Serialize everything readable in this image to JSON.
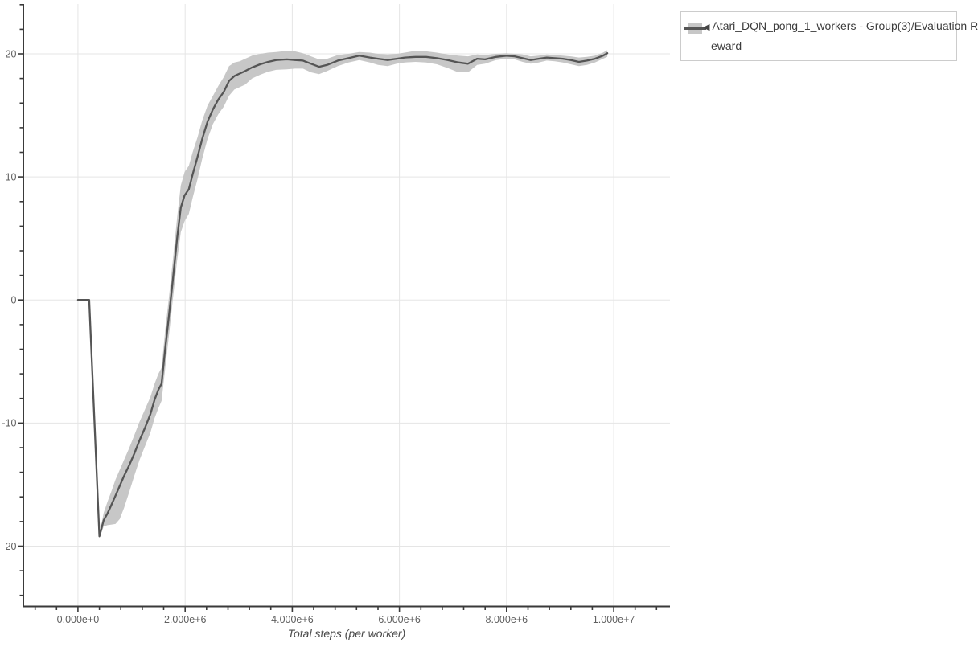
{
  "page": {
    "background": "#ffffff"
  },
  "legend": {
    "border_color": "#cccccc",
    "entries": [
      {
        "marker": "◀",
        "label": "Atari_DQN_pong_1_workers - Group(3)/Evaluation Reward",
        "label_line1": "Atari_DQN_pong_1_workers - Group(3)/Evaluation R",
        "label_line2": "eward",
        "line_color": "#555555",
        "band_color": "#c7c7c7"
      }
    ]
  },
  "chart_data": {
    "type": "line",
    "title": "",
    "xlabel": "Total steps (per worker)",
    "ylabel": "",
    "grid": true,
    "legend_position": "top-right-outside",
    "grid_color": "#e5e5e5",
    "axis_color": "#3a3a3a",
    "tick_label_color": "#606060",
    "x_axis": {
      "lim": [
        -1020000,
        11050000
      ],
      "major_ticks": [
        0,
        2000000,
        4000000,
        6000000,
        8000000,
        10000000
      ],
      "major_labels": [
        "0.000e+0",
        "2.000e+6",
        "4.000e+6",
        "6.000e+6",
        "8.000e+6",
        "1.000e+7"
      ],
      "minor_step": 400000
    },
    "y_axis": {
      "lim": [
        -24.9,
        24.05
      ],
      "major_ticks": [
        -20,
        -10,
        0,
        10,
        20
      ],
      "major_labels": [
        "-20",
        "-10",
        "0",
        "10",
        "20"
      ],
      "minor_step": 2
    },
    "series": [
      {
        "name": "Atari_DQN_pong_1_workers - Group(3)/Evaluation Reward",
        "color": "#555555",
        "band_color": "#c7c7c7",
        "points_format": [
          "x_steps",
          "mean",
          "band_low",
          "band_high"
        ],
        "points": [
          [
            0,
            0.0,
            0.0,
            0.0
          ],
          [
            210000,
            0.0,
            0.0,
            0.0
          ],
          [
            400000,
            -19.2,
            -19.35,
            -19.05
          ],
          [
            480000,
            -17.9,
            -18.4,
            -17.3
          ],
          [
            550000,
            -17.35,
            -18.3,
            -16.4
          ],
          [
            620000,
            -16.7,
            -18.25,
            -15.6
          ],
          [
            700000,
            -15.9,
            -18.2,
            -14.6
          ],
          [
            780000,
            -15.1,
            -17.8,
            -13.8
          ],
          [
            860000,
            -14.3,
            -16.9,
            -13.0
          ],
          [
            950000,
            -13.5,
            -15.7,
            -12.1
          ],
          [
            1050000,
            -12.5,
            -14.3,
            -11.0
          ],
          [
            1150000,
            -11.4,
            -13.0,
            -9.9
          ],
          [
            1250000,
            -10.4,
            -11.9,
            -8.9
          ],
          [
            1350000,
            -9.3,
            -10.8,
            -7.9
          ],
          [
            1430000,
            -8.1,
            -9.6,
            -6.8
          ],
          [
            1500000,
            -7.3,
            -8.8,
            -6.0
          ],
          [
            1560000,
            -6.8,
            -8.2,
            -5.5
          ],
          [
            1630000,
            -3.9,
            -5.5,
            -2.4
          ],
          [
            1700000,
            -1.2,
            -2.8,
            0.3
          ],
          [
            1780000,
            2.0,
            0.4,
            3.6
          ],
          [
            1850000,
            5.0,
            3.2,
            6.7
          ],
          [
            1920000,
            7.5,
            5.5,
            9.3
          ],
          [
            1990000,
            8.5,
            6.4,
            10.4
          ],
          [
            2070000,
            9.0,
            7.0,
            10.9
          ],
          [
            2140000,
            10.2,
            8.3,
            12.0
          ],
          [
            2230000,
            11.6,
            9.8,
            13.2
          ],
          [
            2320000,
            13.1,
            11.5,
            14.6
          ],
          [
            2420000,
            14.5,
            13.1,
            15.8
          ],
          [
            2520000,
            15.5,
            14.3,
            16.6
          ],
          [
            2620000,
            16.3,
            15.1,
            17.4
          ],
          [
            2720000,
            16.9,
            15.7,
            18.1
          ],
          [
            2820000,
            17.8,
            16.6,
            19.0
          ],
          [
            2920000,
            18.2,
            17.1,
            19.3
          ],
          [
            3020000,
            18.4,
            17.3,
            19.4
          ],
          [
            3120000,
            18.6,
            17.5,
            19.6
          ],
          [
            3250000,
            18.9,
            18.0,
            19.85
          ],
          [
            3400000,
            19.15,
            18.3,
            20.0
          ],
          [
            3550000,
            19.35,
            18.55,
            20.1
          ],
          [
            3700000,
            19.5,
            18.7,
            20.15
          ],
          [
            3900000,
            19.55,
            18.75,
            20.25
          ],
          [
            4050000,
            19.5,
            18.8,
            20.2
          ],
          [
            4200000,
            19.45,
            18.8,
            20.05
          ],
          [
            4350000,
            19.2,
            18.5,
            19.8
          ],
          [
            4500000,
            18.95,
            18.35,
            19.55
          ],
          [
            4650000,
            19.1,
            18.6,
            19.6
          ],
          [
            4850000,
            19.45,
            19.0,
            19.9
          ],
          [
            5050000,
            19.65,
            19.3,
            20.0
          ],
          [
            5250000,
            19.85,
            19.5,
            20.15
          ],
          [
            5450000,
            19.7,
            19.3,
            20.1
          ],
          [
            5600000,
            19.6,
            19.1,
            20.0
          ],
          [
            5780000,
            19.5,
            19.0,
            19.95
          ],
          [
            5950000,
            19.6,
            19.2,
            20.0
          ],
          [
            6100000,
            19.7,
            19.3,
            20.1
          ],
          [
            6300000,
            19.75,
            19.35,
            20.25
          ],
          [
            6500000,
            19.75,
            19.3,
            20.2
          ],
          [
            6700000,
            19.65,
            19.15,
            20.1
          ],
          [
            6900000,
            19.5,
            18.85,
            19.95
          ],
          [
            7100000,
            19.3,
            18.5,
            19.85
          ],
          [
            7280000,
            19.2,
            18.5,
            19.8
          ],
          [
            7450000,
            19.6,
            19.1,
            19.95
          ],
          [
            7600000,
            19.55,
            19.2,
            19.9
          ],
          [
            7800000,
            19.75,
            19.5,
            20.0
          ],
          [
            8000000,
            19.85,
            19.6,
            20.05
          ],
          [
            8150000,
            19.8,
            19.55,
            20.0
          ],
          [
            8300000,
            19.65,
            19.35,
            19.95
          ],
          [
            8450000,
            19.5,
            19.2,
            19.8
          ],
          [
            8600000,
            19.6,
            19.3,
            19.85
          ],
          [
            8750000,
            19.7,
            19.45,
            19.95
          ],
          [
            8900000,
            19.65,
            19.4,
            19.9
          ],
          [
            9050000,
            19.6,
            19.3,
            19.85
          ],
          [
            9200000,
            19.5,
            19.15,
            19.8
          ],
          [
            9350000,
            19.35,
            19.0,
            19.7
          ],
          [
            9500000,
            19.45,
            19.1,
            19.75
          ],
          [
            9650000,
            19.6,
            19.3,
            19.85
          ],
          [
            9800000,
            19.85,
            19.6,
            20.1
          ],
          [
            9880000,
            20.05,
            19.75,
            20.3
          ]
        ]
      }
    ]
  }
}
